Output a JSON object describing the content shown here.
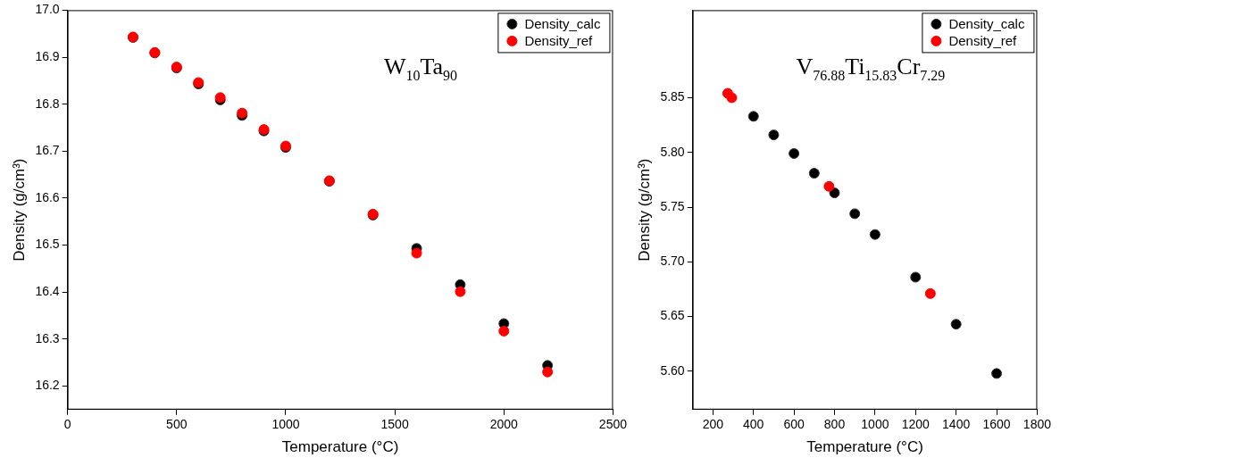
{
  "chart_data": [
    {
      "type": "scatter",
      "annotation": "W10Ta90",
      "x_label": "Temperature (°C)",
      "y_label": "Density (g/cm³)",
      "xlim": [
        0,
        2500
      ],
      "xticks": [
        0,
        500,
        1000,
        1500,
        2000,
        2500
      ],
      "ylim": [
        16.15,
        17.0
      ],
      "yticks": [
        16.2,
        16.3,
        16.4,
        16.5,
        16.6,
        16.7,
        16.8,
        16.9,
        {
          "value": 17,
          "label": "17.0"
        }
      ],
      "grid": false,
      "legend": "upper right",
      "series": [
        {
          "name": "Density_calc",
          "color": "#000000",
          "marker": "circle",
          "x": [
            300,
            400,
            500,
            600,
            700,
            800,
            900,
            1000,
            1200,
            1400,
            1600,
            1800,
            2000,
            2200
          ],
          "values": [
            16.942,
            16.909,
            16.877,
            16.843,
            16.809,
            16.776,
            16.743,
            16.708,
            16.636,
            16.564,
            16.493,
            16.416,
            16.333,
            16.244
          ]
        },
        {
          "name": "Density_ref",
          "color": "#ff0000",
          "marker": "circle",
          "x": [
            300,
            400,
            500,
            600,
            700,
            800,
            900,
            1000,
            1200,
            1400,
            1600,
            1800,
            2000,
            2200
          ],
          "values": [
            16.943,
            16.91,
            16.879,
            16.846,
            16.814,
            16.781,
            16.746,
            16.711,
            16.637,
            16.566,
            16.483,
            16.401,
            16.317,
            16.23
          ]
        }
      ]
    },
    {
      "type": "scatter",
      "annotation": "V76.88Ti15.83Cr7.29",
      "x_label": "Temperature (°C)",
      "y_label": "Density (g/cm³)",
      "xlim": [
        100,
        1800
      ],
      "xticks": [
        200,
        400,
        600,
        800,
        1000,
        1200,
        1400,
        1600,
        1800
      ],
      "ylim": [
        5.565,
        5.93
      ],
      "yticks": [
        {
          "value": 5.6,
          "label": "5.60"
        },
        5.65,
        {
          "value": 5.7,
          "label": "5.70"
        },
        5.75,
        {
          "value": 5.8,
          "label": "5.80"
        },
        5.85
      ],
      "grid": false,
      "legend": "upper right",
      "series": [
        {
          "name": "Density_calc",
          "color": "#000000",
          "marker": "circle",
          "x": [
            400,
            500,
            600,
            700,
            800,
            900,
            1000,
            1200,
            1400,
            1600
          ],
          "values": [
            5.833,
            5.816,
            5.799,
            5.781,
            5.763,
            5.744,
            5.725,
            5.686,
            5.643,
            5.598
          ]
        },
        {
          "name": "Density_ref",
          "color": "#ff0000",
          "marker": "circle",
          "x": [
            273,
            293,
            773,
            1273
          ],
          "values": [
            5.854,
            5.85,
            5.769,
            5.671
          ]
        }
      ]
    }
  ]
}
